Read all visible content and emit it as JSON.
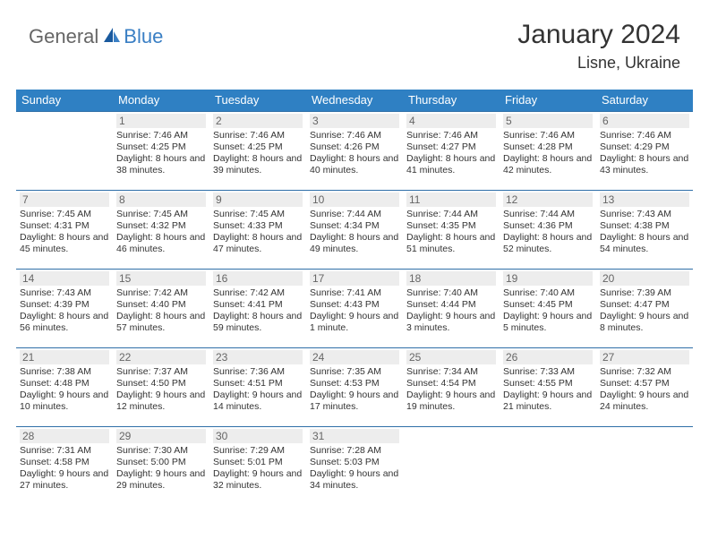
{
  "brand": {
    "part1": "General",
    "part2": "Blue"
  },
  "title": "January 2024",
  "location": "Lisne, Ukraine",
  "colors": {
    "header_bg": "#2f80c3",
    "rule": "#2f6fa8",
    "daynum_bg": "#ededed",
    "text": "#333333",
    "muted": "#666666",
    "brand_blue": "#3a7fc4"
  },
  "dayHeaders": [
    "Sunday",
    "Monday",
    "Tuesday",
    "Wednesday",
    "Thursday",
    "Friday",
    "Saturday"
  ],
  "weeks": [
    [
      {
        "day": "",
        "sunrise": "",
        "sunset": "",
        "daylight": ""
      },
      {
        "day": "1",
        "sunrise": "Sunrise: 7:46 AM",
        "sunset": "Sunset: 4:25 PM",
        "daylight": "Daylight: 8 hours and 38 minutes."
      },
      {
        "day": "2",
        "sunrise": "Sunrise: 7:46 AM",
        "sunset": "Sunset: 4:25 PM",
        "daylight": "Daylight: 8 hours and 39 minutes."
      },
      {
        "day": "3",
        "sunrise": "Sunrise: 7:46 AM",
        "sunset": "Sunset: 4:26 PM",
        "daylight": "Daylight: 8 hours and 40 minutes."
      },
      {
        "day": "4",
        "sunrise": "Sunrise: 7:46 AM",
        "sunset": "Sunset: 4:27 PM",
        "daylight": "Daylight: 8 hours and 41 minutes."
      },
      {
        "day": "5",
        "sunrise": "Sunrise: 7:46 AM",
        "sunset": "Sunset: 4:28 PM",
        "daylight": "Daylight: 8 hours and 42 minutes."
      },
      {
        "day": "6",
        "sunrise": "Sunrise: 7:46 AM",
        "sunset": "Sunset: 4:29 PM",
        "daylight": "Daylight: 8 hours and 43 minutes."
      }
    ],
    [
      {
        "day": "7",
        "sunrise": "Sunrise: 7:45 AM",
        "sunset": "Sunset: 4:31 PM",
        "daylight": "Daylight: 8 hours and 45 minutes."
      },
      {
        "day": "8",
        "sunrise": "Sunrise: 7:45 AM",
        "sunset": "Sunset: 4:32 PM",
        "daylight": "Daylight: 8 hours and 46 minutes."
      },
      {
        "day": "9",
        "sunrise": "Sunrise: 7:45 AM",
        "sunset": "Sunset: 4:33 PM",
        "daylight": "Daylight: 8 hours and 47 minutes."
      },
      {
        "day": "10",
        "sunrise": "Sunrise: 7:44 AM",
        "sunset": "Sunset: 4:34 PM",
        "daylight": "Daylight: 8 hours and 49 minutes."
      },
      {
        "day": "11",
        "sunrise": "Sunrise: 7:44 AM",
        "sunset": "Sunset: 4:35 PM",
        "daylight": "Daylight: 8 hours and 51 minutes."
      },
      {
        "day": "12",
        "sunrise": "Sunrise: 7:44 AM",
        "sunset": "Sunset: 4:36 PM",
        "daylight": "Daylight: 8 hours and 52 minutes."
      },
      {
        "day": "13",
        "sunrise": "Sunrise: 7:43 AM",
        "sunset": "Sunset: 4:38 PM",
        "daylight": "Daylight: 8 hours and 54 minutes."
      }
    ],
    [
      {
        "day": "14",
        "sunrise": "Sunrise: 7:43 AM",
        "sunset": "Sunset: 4:39 PM",
        "daylight": "Daylight: 8 hours and 56 minutes."
      },
      {
        "day": "15",
        "sunrise": "Sunrise: 7:42 AM",
        "sunset": "Sunset: 4:40 PM",
        "daylight": "Daylight: 8 hours and 57 minutes."
      },
      {
        "day": "16",
        "sunrise": "Sunrise: 7:42 AM",
        "sunset": "Sunset: 4:41 PM",
        "daylight": "Daylight: 8 hours and 59 minutes."
      },
      {
        "day": "17",
        "sunrise": "Sunrise: 7:41 AM",
        "sunset": "Sunset: 4:43 PM",
        "daylight": "Daylight: 9 hours and 1 minute."
      },
      {
        "day": "18",
        "sunrise": "Sunrise: 7:40 AM",
        "sunset": "Sunset: 4:44 PM",
        "daylight": "Daylight: 9 hours and 3 minutes."
      },
      {
        "day": "19",
        "sunrise": "Sunrise: 7:40 AM",
        "sunset": "Sunset: 4:45 PM",
        "daylight": "Daylight: 9 hours and 5 minutes."
      },
      {
        "day": "20",
        "sunrise": "Sunrise: 7:39 AM",
        "sunset": "Sunset: 4:47 PM",
        "daylight": "Daylight: 9 hours and 8 minutes."
      }
    ],
    [
      {
        "day": "21",
        "sunrise": "Sunrise: 7:38 AM",
        "sunset": "Sunset: 4:48 PM",
        "daylight": "Daylight: 9 hours and 10 minutes."
      },
      {
        "day": "22",
        "sunrise": "Sunrise: 7:37 AM",
        "sunset": "Sunset: 4:50 PM",
        "daylight": "Daylight: 9 hours and 12 minutes."
      },
      {
        "day": "23",
        "sunrise": "Sunrise: 7:36 AM",
        "sunset": "Sunset: 4:51 PM",
        "daylight": "Daylight: 9 hours and 14 minutes."
      },
      {
        "day": "24",
        "sunrise": "Sunrise: 7:35 AM",
        "sunset": "Sunset: 4:53 PM",
        "daylight": "Daylight: 9 hours and 17 minutes."
      },
      {
        "day": "25",
        "sunrise": "Sunrise: 7:34 AM",
        "sunset": "Sunset: 4:54 PM",
        "daylight": "Daylight: 9 hours and 19 minutes."
      },
      {
        "day": "26",
        "sunrise": "Sunrise: 7:33 AM",
        "sunset": "Sunset: 4:55 PM",
        "daylight": "Daylight: 9 hours and 21 minutes."
      },
      {
        "day": "27",
        "sunrise": "Sunrise: 7:32 AM",
        "sunset": "Sunset: 4:57 PM",
        "daylight": "Daylight: 9 hours and 24 minutes."
      }
    ],
    [
      {
        "day": "28",
        "sunrise": "Sunrise: 7:31 AM",
        "sunset": "Sunset: 4:58 PM",
        "daylight": "Daylight: 9 hours and 27 minutes."
      },
      {
        "day": "29",
        "sunrise": "Sunrise: 7:30 AM",
        "sunset": "Sunset: 5:00 PM",
        "daylight": "Daylight: 9 hours and 29 minutes."
      },
      {
        "day": "30",
        "sunrise": "Sunrise: 7:29 AM",
        "sunset": "Sunset: 5:01 PM",
        "daylight": "Daylight: 9 hours and 32 minutes."
      },
      {
        "day": "31",
        "sunrise": "Sunrise: 7:28 AM",
        "sunset": "Sunset: 5:03 PM",
        "daylight": "Daylight: 9 hours and 34 minutes."
      },
      {
        "day": "",
        "sunrise": "",
        "sunset": "",
        "daylight": ""
      },
      {
        "day": "",
        "sunrise": "",
        "sunset": "",
        "daylight": ""
      },
      {
        "day": "",
        "sunrise": "",
        "sunset": "",
        "daylight": ""
      }
    ]
  ]
}
